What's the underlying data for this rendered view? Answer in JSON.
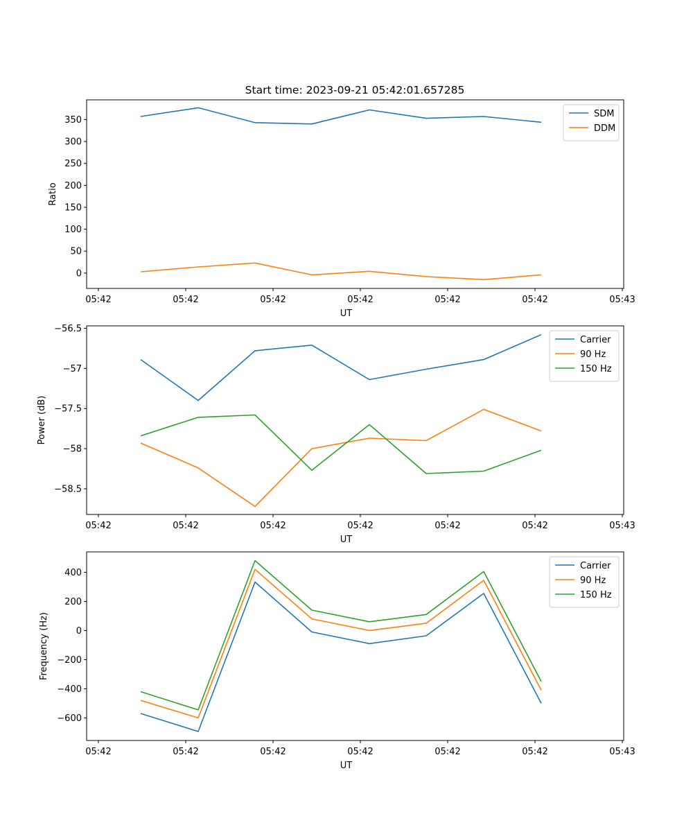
{
  "chart_data": [
    {
      "type": "line",
      "title": "Start time: 2023-09-21 05:42:01.657285",
      "xlabel": "UT",
      "ylabel": "Ratio",
      "xticks": [
        "05:42",
        "05:42",
        "05:42",
        "05:42",
        "05:42",
        "05:42",
        "05:43"
      ],
      "x": [
        1,
        2,
        3,
        4,
        5,
        6,
        7,
        8
      ],
      "ylim": [
        -35,
        395
      ],
      "yticks": [
        0,
        50,
        100,
        150,
        200,
        250,
        300,
        350
      ],
      "legend": "top-right",
      "series": [
        {
          "name": "SDM",
          "color": "#1f77b4",
          "values": [
            357,
            377,
            343,
            340,
            372,
            353,
            357,
            344
          ]
        },
        {
          "name": "DDM",
          "color": "#ff7f0e",
          "values": [
            3,
            14,
            23,
            -4,
            4,
            -8,
            -15,
            -4
          ]
        }
      ]
    },
    {
      "type": "line",
      "title": "",
      "xlabel": "UT",
      "ylabel": "Power (dB)",
      "xticks": [
        "05:42",
        "05:42",
        "05:42",
        "05:42",
        "05:42",
        "05:42",
        "05:43"
      ],
      "x": [
        1,
        2,
        3,
        4,
        5,
        6,
        7,
        8
      ],
      "ylim": [
        -58.82,
        -56.47
      ],
      "yticks": [
        -58.5,
        -58.0,
        -57.5,
        -57.0,
        -56.5
      ],
      "legend": "top-right",
      "series": [
        {
          "name": "Carrier",
          "color": "#1f77b4",
          "values": [
            -56.89,
            -57.4,
            -56.78,
            -56.71,
            -57.14,
            -57.01,
            -56.89,
            -56.58
          ]
        },
        {
          "name": "90 Hz",
          "color": "#ff7f0e",
          "values": [
            -57.93,
            -58.24,
            -58.72,
            -58.0,
            -57.87,
            -57.9,
            -57.51,
            -57.78
          ]
        },
        {
          "name": "150 Hz",
          "color": "#2ca02c",
          "values": [
            -57.84,
            -57.61,
            -57.58,
            -58.27,
            -57.7,
            -58.31,
            -58.28,
            -58.02
          ]
        }
      ]
    },
    {
      "type": "line",
      "title": "",
      "xlabel": "UT",
      "ylabel": "Frequency (Hz)",
      "xticks": [
        "05:42",
        "05:42",
        "05:42",
        "05:42",
        "05:42",
        "05:42",
        "05:43"
      ],
      "x": [
        1,
        2,
        3,
        4,
        5,
        6,
        7,
        8
      ],
      "ylim": [
        -755,
        540
      ],
      "yticks": [
        -600,
        -400,
        -200,
        0,
        200,
        400
      ],
      "legend": "top-right",
      "series": [
        {
          "name": "Carrier",
          "color": "#1f77b4",
          "values": [
            -570,
            -693,
            333,
            -10,
            -90,
            -36,
            255,
            -500
          ]
        },
        {
          "name": "90 Hz",
          "color": "#ff7f0e",
          "values": [
            -480,
            -600,
            420,
            80,
            0,
            50,
            345,
            -410
          ]
        },
        {
          "name": "150 Hz",
          "color": "#2ca02c",
          "values": [
            -420,
            -545,
            480,
            140,
            60,
            110,
            405,
            -350
          ]
        }
      ]
    }
  ]
}
